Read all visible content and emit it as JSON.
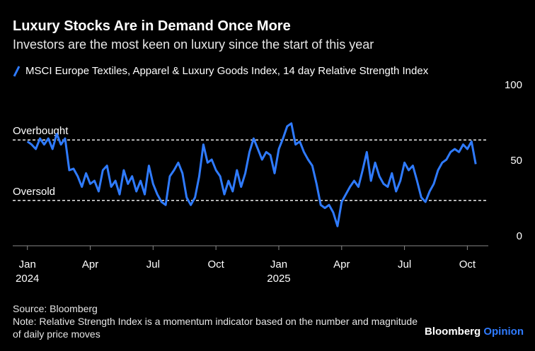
{
  "chart_data": {
    "type": "line",
    "title": "Luxury Stocks Are in Demand Once More",
    "subtitle": "Investors are the most keen on luxury since the start of this year",
    "source": "Source: Bloomberg",
    "note": "Note: Relative Strength Index is a momentum indicator based on the number and magnitude of daily price moves",
    "brand": {
      "name": "Bloomberg",
      "section": "Opinion"
    },
    "x": [
      0,
      0.2,
      0.4,
      0.6,
      0.8,
      1,
      1.2,
      1.4,
      1.6,
      1.8,
      2,
      2.2,
      2.4,
      2.6,
      2.8,
      3,
      3.2,
      3.4,
      3.6,
      3.8,
      4,
      4.2,
      4.4,
      4.6,
      4.8,
      5,
      5.2,
      5.4,
      5.6,
      5.8,
      6,
      6.2,
      6.4,
      6.6,
      6.8,
      7,
      7.2,
      7.4,
      7.6,
      7.8,
      8,
      8.2,
      8.4,
      8.6,
      8.8,
      9,
      9.2,
      9.4,
      9.6,
      9.8,
      10,
      10.2,
      10.4,
      10.6,
      10.8,
      11,
      11.2,
      11.4,
      11.6,
      11.8,
      12,
      12.2,
      12.4,
      12.6,
      12.8,
      13,
      13.2,
      13.4,
      13.6,
      13.8,
      14,
      14.2,
      14.4,
      14.6,
      14.8,
      15,
      15.2,
      15.4,
      15.6,
      15.8,
      16,
      16.2,
      16.4,
      16.6,
      16.8,
      17,
      17.2,
      17.4,
      17.6,
      17.8,
      18,
      18.2,
      18.4,
      18.6,
      18.8,
      19,
      19.2,
      19.4,
      19.6,
      19.8,
      20,
      20.2,
      20.4,
      20.6,
      20.8,
      21,
      21.2,
      21.4
    ],
    "series": [
      {
        "name": "MSCI Europe Textiles, Apparel & Luxury Goods Index, 14 day Relative Strength Index",
        "color": "#2f7bff",
        "values": [
          69,
          67,
          64,
          71,
          67,
          71,
          64,
          74,
          67,
          71,
          50,
          51,
          46,
          39,
          48,
          41,
          43,
          36,
          50,
          53,
          39,
          43,
          34,
          50,
          41,
          46,
          36,
          43,
          34,
          53,
          41,
          34,
          29,
          27,
          46,
          50,
          55,
          48,
          32,
          27,
          32,
          46,
          67,
          55,
          57,
          50,
          46,
          34,
          43,
          36,
          50,
          39,
          48,
          62,
          71,
          64,
          57,
          62,
          60,
          48,
          64,
          71,
          79,
          81,
          67,
          69,
          62,
          57,
          53,
          41,
          27,
          25,
          27,
          22,
          13,
          29,
          34,
          39,
          43,
          39,
          50,
          62,
          43,
          55,
          46,
          41,
          39,
          48,
          36,
          43,
          55,
          50,
          53,
          43,
          32,
          29,
          36,
          41,
          50,
          55,
          57,
          62,
          64,
          62,
          67,
          64,
          69,
          54
        ]
      }
    ],
    "xlim": [
      -0.7,
      22
    ],
    "xticks": [
      {
        "value": 0,
        "label": "Jan"
      },
      {
        "value": 3,
        "label": "Apr"
      },
      {
        "value": 6,
        "label": "Jul"
      },
      {
        "value": 9,
        "label": "Oct"
      },
      {
        "value": 12,
        "label": "Jan"
      },
      {
        "value": 15,
        "label": "Apr"
      },
      {
        "value": 18,
        "label": "Jul"
      },
      {
        "value": 21,
        "label": "Oct"
      }
    ],
    "xtick_years": [
      {
        "value": 0,
        "label": "2024"
      },
      {
        "value": 12,
        "label": "2025"
      }
    ],
    "ylim": [
      0,
      100
    ],
    "yticks": [
      0,
      50,
      100
    ],
    "reference_lines": [
      {
        "value": 70,
        "label": "Overbought"
      },
      {
        "value": 30,
        "label": "Oversold"
      }
    ],
    "grid": false
  }
}
